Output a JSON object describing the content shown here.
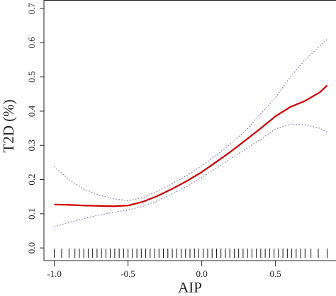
{
  "chart_data": {
    "type": "line",
    "x_label": "AIP",
    "y_label": "T2D (%)",
    "x": [
      -1.0,
      -0.9,
      -0.8,
      -0.7,
      -0.6,
      -0.5,
      -0.4,
      -0.3,
      -0.2,
      -0.1,
      0.0,
      0.1,
      0.2,
      0.3,
      0.4,
      0.5,
      0.6,
      0.7,
      0.8,
      0.85
    ],
    "series": [
      {
        "color": "#cc0000",
        "style": "solid",
        "values": [
          0.127,
          0.126,
          0.124,
          0.123,
          0.122,
          0.124,
          0.135,
          0.152,
          0.173,
          0.196,
          0.222,
          0.252,
          0.283,
          0.316,
          0.35,
          0.385,
          0.412,
          0.43,
          0.455,
          0.475
        ]
      },
      {
        "color": "#8a6fb0",
        "style": "dotted",
        "values": [
          0.062,
          0.075,
          0.086,
          0.096,
          0.104,
          0.111,
          0.122,
          0.138,
          0.158,
          0.18,
          0.206,
          0.234,
          0.262,
          0.29,
          0.318,
          0.348,
          0.362,
          0.36,
          0.35,
          0.338
        ]
      },
      {
        "color": "#8a6fb0",
        "style": "dotted",
        "values": [
          0.238,
          0.2,
          0.172,
          0.155,
          0.144,
          0.138,
          0.147,
          0.166,
          0.188,
          0.212,
          0.24,
          0.272,
          0.306,
          0.345,
          0.392,
          0.44,
          0.5,
          0.55,
          0.59,
          0.61
        ]
      }
    ],
    "rug": [
      -1.0,
      -0.95,
      -0.9,
      -0.86,
      -0.83,
      -0.8,
      -0.77,
      -0.74,
      -0.71,
      -0.68,
      -0.65,
      -0.62,
      -0.59,
      -0.56,
      -0.53,
      -0.5,
      -0.47,
      -0.44,
      -0.41,
      -0.38,
      -0.35,
      -0.32,
      -0.29,
      -0.26,
      -0.23,
      -0.2,
      -0.17,
      -0.14,
      -0.11,
      -0.08,
      -0.05,
      -0.02,
      0.01,
      0.04,
      0.07,
      0.1,
      0.13,
      0.16,
      0.19,
      0.22,
      0.25,
      0.28,
      0.31,
      0.34,
      0.37,
      0.4,
      0.43,
      0.46,
      0.49,
      0.52,
      0.55,
      0.58,
      0.61,
      0.64,
      0.67,
      0.7,
      0.74,
      0.79,
      0.85
    ],
    "xlim": [
      -1.07,
      0.91
    ],
    "ylim": [
      -0.037,
      0.725
    ],
    "xticks": [
      {
        "value": -1.0,
        "label": "-1.0"
      },
      {
        "value": -0.5,
        "label": "-0.5"
      },
      {
        "value": 0.0,
        "label": "0.0"
      },
      {
        "value": 0.5,
        "label": "0.5"
      }
    ],
    "yticks": [
      {
        "value": 0.0,
        "label": "0.0"
      },
      0.1,
      0.2,
      0.3,
      0.4,
      0.5,
      0.6,
      0.7
    ],
    "grid": false
  }
}
